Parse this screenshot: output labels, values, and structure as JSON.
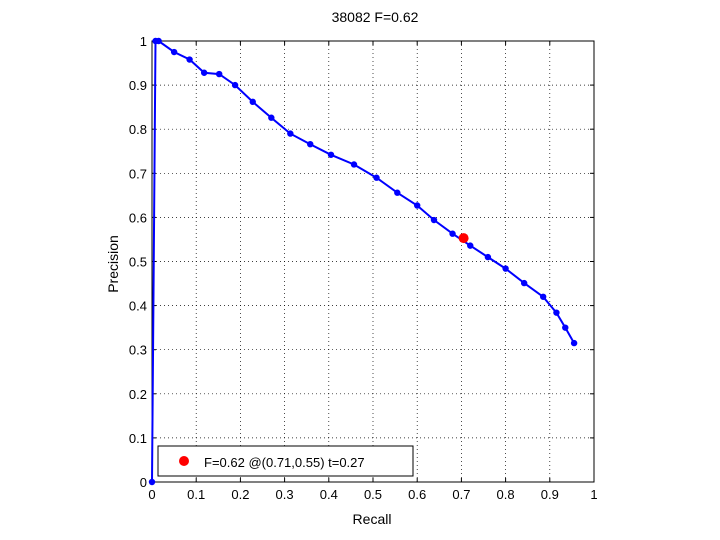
{
  "chart_data": {
    "type": "line",
    "title": "38082 F=0.62",
    "xlabel": "Recall",
    "ylabel": "Precision",
    "xlim": [
      0,
      1
    ],
    "ylim": [
      0,
      1
    ],
    "grid": true,
    "xticks": [
      0,
      0.1,
      0.2,
      0.3,
      0.4,
      0.5,
      0.6,
      0.7,
      0.8,
      0.9,
      1
    ],
    "yticks": [
      0,
      0.1,
      0.2,
      0.3,
      0.4,
      0.5,
      0.6,
      0.7,
      0.8,
      0.9,
      1
    ],
    "tick_labels_x": [
      "0",
      "0.1",
      "0.2",
      "0.3",
      "0.4",
      "0.5",
      "0.6",
      "0.7",
      "0.8",
      "0.9",
      "1"
    ],
    "tick_labels_y": [
      "0",
      "0.1",
      "0.2",
      "0.3",
      "0.4",
      "0.5",
      "0.6",
      "0.7",
      "0.8",
      "0.9",
      "1"
    ],
    "series": [
      {
        "color": "#0000ff",
        "marker_color": "#0000ff",
        "x": [
          0,
          0.008,
          0.015,
          0.05,
          0.085,
          0.118,
          0.152,
          0.188,
          0.228,
          0.27,
          0.313,
          0.358,
          0.405,
          0.457,
          0.508,
          0.555,
          0.6,
          0.638,
          0.68,
          0.72,
          0.76,
          0.8,
          0.842,
          0.885,
          0.915,
          0.935,
          0.955
        ],
        "y": [
          0,
          1.0,
          1.0,
          0.975,
          0.958,
          0.928,
          0.925,
          0.9,
          0.862,
          0.826,
          0.79,
          0.766,
          0.742,
          0.72,
          0.69,
          0.656,
          0.627,
          0.594,
          0.563,
          0.536,
          0.51,
          0.484,
          0.451,
          0.42,
          0.384,
          0.35,
          0.315
        ]
      }
    ],
    "best_point": {
      "x": 0.705,
      "y": 0.553,
      "color": "#ff0000"
    },
    "legend": {
      "position": "bottom-left",
      "text": "F=0.62 @(0.71,0.55) t=0.27",
      "marker_color": "#ff0000"
    }
  }
}
